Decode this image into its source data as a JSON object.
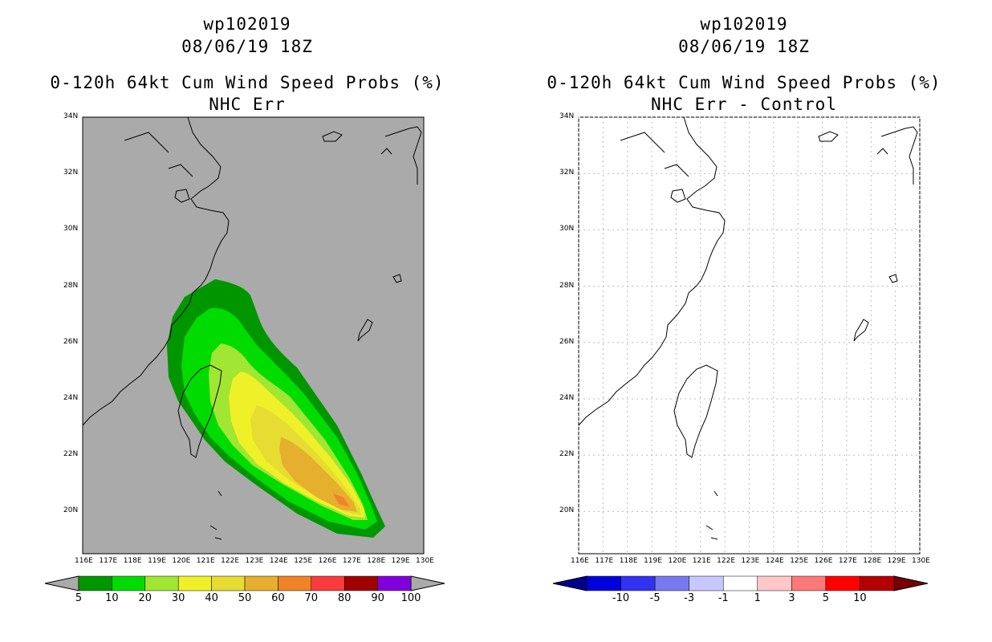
{
  "left_panel": {
    "storm_id": "wp102019",
    "datetime": "08/06/19 18Z",
    "title": "0-120h 64kt Cum Wind Speed Probs (%)",
    "subtitle": "NHC Err",
    "lat_labels": [
      "34N",
      "32N",
      "30N",
      "28N",
      "26N",
      "24N",
      "22N",
      "20N"
    ],
    "lon_labels": [
      "116E",
      "117E",
      "118E",
      "119E",
      "120E",
      "121E",
      "122E",
      "123E",
      "124E",
      "125E",
      "126E",
      "127E",
      "128E",
      "129E",
      "130E"
    ],
    "colorbar": {
      "labels": [
        "5",
        "10",
        "20",
        "30",
        "40",
        "50",
        "60",
        "70",
        "80",
        "90",
        "100"
      ],
      "colors": [
        "#009600",
        "#00dc00",
        "#a0e632",
        "#f0f028",
        "#e6dc32",
        "#e6af2d",
        "#f08228",
        "#fa3c3c",
        "#a00000",
        "#8200dc"
      ]
    }
  },
  "right_panel": {
    "storm_id": "wp102019",
    "datetime": "08/06/19 18Z",
    "title": "0-120h 64kt Cum Wind Speed Probs (%)",
    "subtitle": "NHC Err - Control",
    "lat_labels": [
      "34N",
      "32N",
      "30N",
      "28N",
      "26N",
      "24N",
      "22N",
      "20N"
    ],
    "lon_labels": [
      "116E",
      "117E",
      "118E",
      "119E",
      "120E",
      "121E",
      "122E",
      "123E",
      "124E",
      "125E",
      "126E",
      "127E",
      "128E",
      "129E",
      "130E"
    ],
    "colorbar": {
      "labels": [
        "-10",
        "-5",
        "-3",
        "-1",
        "1",
        "3",
        "5",
        "10"
      ],
      "colors": [
        "#0000dc",
        "#3232f0",
        "#7878f0",
        "#c8c8ff",
        "#ffffff",
        "#ffc8c8",
        "#ff7878",
        "#ff0000",
        "#b40000"
      ]
    }
  },
  "colors": {
    "map_background_left": "#aaaaaa",
    "map_background_right": "#ffffff",
    "outline": "#000000"
  }
}
